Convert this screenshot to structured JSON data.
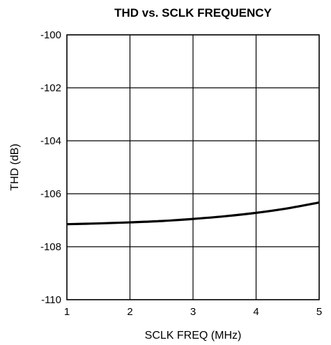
{
  "chart_data": {
    "type": "line",
    "title": "THD vs. SCLK FREQUENCY",
    "xlabel": "SCLK FREQ (MHz)",
    "ylabel": "THD (dB)",
    "xlim": [
      1,
      5
    ],
    "ylim": [
      -110,
      -100
    ],
    "x_ticks": [
      1,
      2,
      3,
      4,
      5
    ],
    "x_tick_labels": [
      "1",
      "2",
      "3",
      "4",
      "5"
    ],
    "y_ticks": [
      -110,
      -108,
      -106,
      -104,
      -102,
      -100
    ],
    "y_tick_labels": [
      "-110",
      "-108",
      "-106",
      "-104",
      "-102",
      "-100"
    ],
    "grid": true,
    "series": [
      {
        "x": [
          1.0,
          1.5,
          2.0,
          2.5,
          3.0,
          3.5,
          4.0,
          4.5,
          5.0
        ],
        "y": [
          -107.15,
          -107.12,
          -107.08,
          -107.03,
          -106.95,
          -106.85,
          -106.72,
          -106.55,
          -106.33
        ],
        "color": "#000000"
      }
    ]
  }
}
